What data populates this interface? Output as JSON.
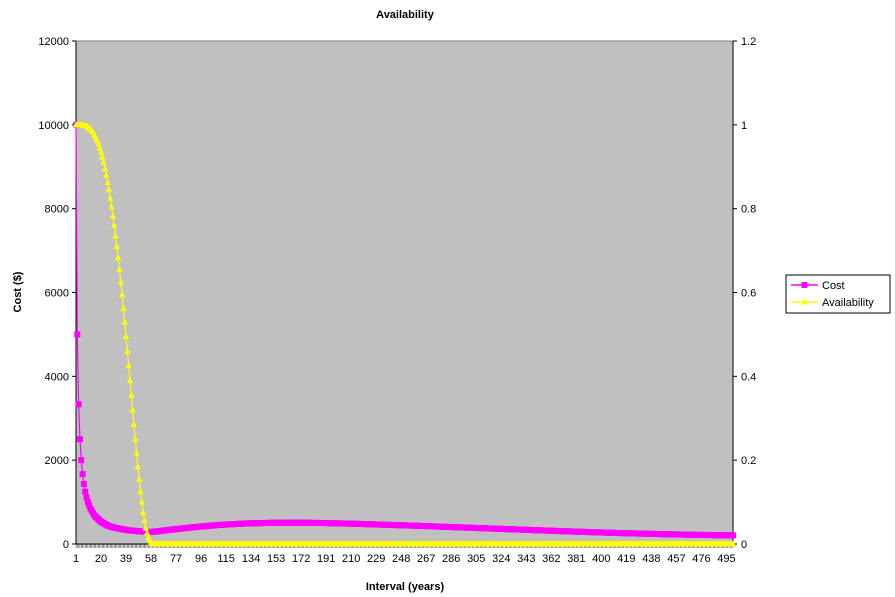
{
  "chart_data": {
    "type": "line",
    "title": "Availability",
    "xlabel": "Interval (years)",
    "ylabel": "Cost ($)",
    "y2label": "",
    "xlim": [
      1,
      500
    ],
    "ylim": [
      0,
      12000
    ],
    "y2lim": [
      0,
      1.2
    ],
    "y_ticks": [
      "0",
      "2000",
      "4000",
      "6000",
      "8000",
      "10000",
      "12000"
    ],
    "y2_ticks": [
      "0",
      "0.2",
      "0.4",
      "0.6",
      "0.8",
      "1",
      "1.2"
    ],
    "x_ticks": [
      "1",
      "20",
      "39",
      "58",
      "77",
      "96",
      "115",
      "134",
      "153",
      "172",
      "191",
      "210",
      "229",
      "248",
      "267",
      "286",
      "305",
      "324",
      "343",
      "362",
      "381",
      "400",
      "419",
      "438",
      "457",
      "476",
      "495"
    ],
    "plot_background": "#C0C0C0",
    "grid": false,
    "legend_position": "right",
    "series": [
      {
        "name": "Cost",
        "axis": "left",
        "color": "#FF00FF",
        "marker": "square",
        "x": [
          1,
          2,
          3,
          4,
          5,
          6,
          7,
          8,
          9,
          10,
          12,
          15,
          20,
          25,
          30,
          40,
          50,
          58,
          70,
          90,
          110,
          130,
          150,
          170,
          190,
          210,
          230,
          260,
          290,
          320,
          350,
          380,
          410,
          440,
          470,
          500
        ],
        "y": [
          10000,
          5000,
          3333,
          2500,
          2000,
          1667,
          1430,
          1250,
          1110,
          1000,
          840,
          680,
          530,
          440,
          390,
          330,
          300,
          285,
          330,
          400,
          455,
          490,
          505,
          508,
          500,
          485,
          465,
          435,
          400,
          365,
          330,
          295,
          265,
          240,
          220,
          205
        ]
      },
      {
        "name": "Availability",
        "axis": "right",
        "color": "#FFFF00",
        "marker": "triangle",
        "x": [
          1,
          5,
          8,
          10,
          12,
          14,
          16,
          18,
          20,
          22,
          24,
          26,
          28,
          30,
          32,
          34,
          36,
          38,
          40,
          42,
          44,
          46,
          48,
          50,
          52,
          54,
          56,
          58,
          60,
          70,
          100,
          150,
          200,
          300,
          400,
          500
        ],
        "y": [
          1.0,
          1.0,
          0.998,
          0.995,
          0.99,
          0.982,
          0.97,
          0.955,
          0.935,
          0.91,
          0.88,
          0.845,
          0.805,
          0.76,
          0.71,
          0.655,
          0.595,
          0.53,
          0.46,
          0.39,
          0.32,
          0.25,
          0.185,
          0.125,
          0.075,
          0.038,
          0.015,
          0.004,
          0.0,
          0.0,
          0.0,
          0.0,
          0.0,
          0.0,
          0.0,
          0.0
        ]
      }
    ]
  }
}
